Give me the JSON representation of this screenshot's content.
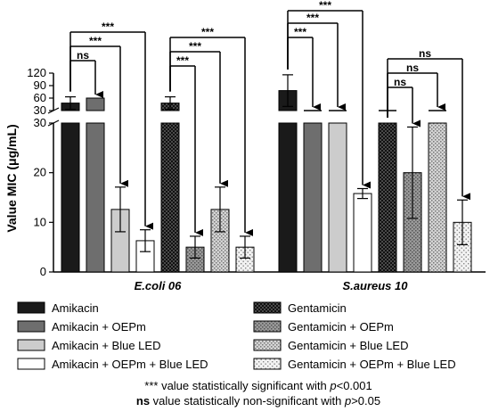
{
  "chart_data": {
    "type": "bar",
    "ylabel": "Value MIC (μg/mL)",
    "y_ticks_lower": [
      0,
      10,
      20,
      30
    ],
    "y_ticks_upper": [
      30,
      60,
      90,
      120
    ],
    "ylim": [
      0,
      120
    ],
    "axis_break": [
      30,
      30
    ],
    "groups": [
      {
        "label": "E.coli 06",
        "bars": [
          {
            "series": "Amikacin",
            "value": 48,
            "error": 15,
            "pattern": "black"
          },
          {
            "series": "Amikacin + OEPm",
            "value": 60,
            "error": 0,
            "pattern": "darkgray"
          },
          {
            "series": "Amikacin + Blue LED",
            "value": 12.6,
            "error": 4.5,
            "pattern": "lightgray"
          },
          {
            "series": "Amikacin + OEPm + Blue LED",
            "value": 6.3,
            "error": 2.2,
            "pattern": "white"
          },
          {
            "series": "Gentamicin",
            "value": 48,
            "error": 15,
            "pattern": "darkcheck"
          },
          {
            "series": "Gentamicin + OEPm",
            "value": 5.0,
            "error": 2.2,
            "pattern": "graydots"
          },
          {
            "series": "Gentamicin + Blue LED",
            "value": 12.6,
            "error": 4.5,
            "pattern": "lightdots"
          },
          {
            "series": "Gentamicin + OEPm + Blue LED",
            "value": 5.0,
            "error": 2.2,
            "pattern": "sparsedots"
          }
        ],
        "annotations": [
          {
            "from": 0,
            "to": 1,
            "label": "ns"
          },
          {
            "from": 0,
            "to": 2,
            "label": "***"
          },
          {
            "from": 0,
            "to": 3,
            "label": "***"
          },
          {
            "from": 4,
            "to": 5,
            "label": "***"
          },
          {
            "from": 4,
            "to": 6,
            "label": "***"
          },
          {
            "from": 4,
            "to": 7,
            "label": "***"
          }
        ]
      },
      {
        "label": "S.aureus 10",
        "bars": [
          {
            "series": "Amikacin",
            "value": 78,
            "error": 38,
            "pattern": "black"
          },
          {
            "series": "Amikacin + OEPm",
            "value": 30,
            "error": 0,
            "pattern": "darkgray"
          },
          {
            "series": "Amikacin + Blue LED",
            "value": 30,
            "error": 0,
            "pattern": "lightgray"
          },
          {
            "series": "Amikacin + OEPm + Blue LED",
            "value": 15.8,
            "error": 1.0,
            "pattern": "white"
          },
          {
            "series": "Gentamicin",
            "value": 30,
            "error": 0,
            "pattern": "darkcheck"
          },
          {
            "series": "Gentamicin + OEPm",
            "value": 20,
            "error": 9.2,
            "pattern": "graydots"
          },
          {
            "series": "Gentamicin + Blue LED",
            "value": 30,
            "error": 0,
            "pattern": "lightdots"
          },
          {
            "series": "Gentamicin + OEPm + Blue LED",
            "value": 10,
            "error": 4.5,
            "pattern": "sparsedots"
          }
        ],
        "annotations": [
          {
            "from": 0,
            "to": 1,
            "label": "***"
          },
          {
            "from": 0,
            "to": 2,
            "label": "***"
          },
          {
            "from": 0,
            "to": 3,
            "label": "***"
          },
          {
            "from": 4,
            "to": 5,
            "label": "ns"
          },
          {
            "from": 4,
            "to": 6,
            "label": "ns"
          },
          {
            "from": 4,
            "to": 7,
            "label": "ns"
          }
        ]
      }
    ],
    "legend": [
      {
        "label": "Amikacin",
        "pattern": "black"
      },
      {
        "label": "Gentamicin",
        "pattern": "darkcheck"
      },
      {
        "label": "Amikacin + OEPm",
        "pattern": "darkgray"
      },
      {
        "label": "Gentamicin + OEPm",
        "pattern": "graydots"
      },
      {
        "label": "Amikacin + Blue LED",
        "pattern": "lightgray"
      },
      {
        "label": "Gentamicin + Blue LED",
        "pattern": "lightdots"
      },
      {
        "label": "Amikacin + OEPm + Blue LED",
        "pattern": "white"
      },
      {
        "label": "Gentamicin + OEPm + Blue LED",
        "pattern": "sparsedots"
      }
    ],
    "footnotes": [
      {
        "symbol": "***",
        "text": " value statistically significant with ",
        "pval": "p",
        "cond": "<0.001"
      },
      {
        "symbol": "ns",
        "text": " value statistically non-significant with ",
        "pval": "p",
        "cond": ">0.05"
      }
    ],
    "colors": {
      "black": "#1a1a1a",
      "darkgray": "#6e6e6e",
      "lightgray": "#cccccc",
      "white": "#ffffff"
    }
  }
}
